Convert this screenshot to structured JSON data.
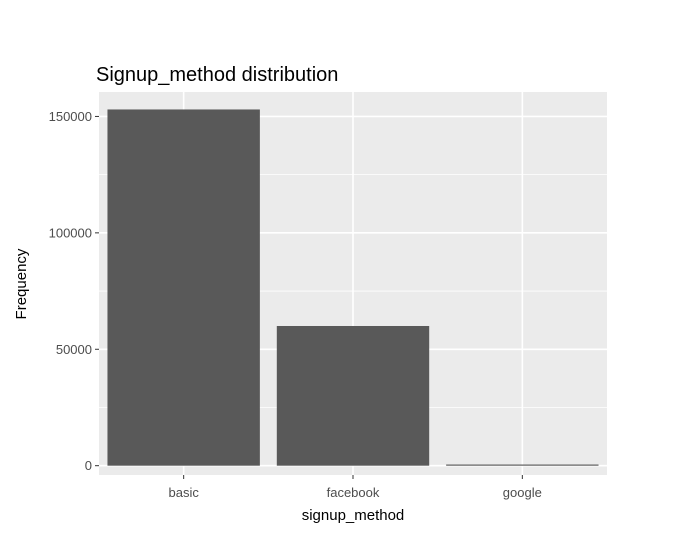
{
  "chart_data": {
    "type": "bar",
    "title": "Signup_method distribution",
    "xlabel": "signup_method",
    "ylabel": "Frequency",
    "categories": [
      "basic",
      "facebook",
      "google"
    ],
    "values": [
      153000,
      60000,
      500
    ],
    "ylim": [
      -4000,
      160500
    ],
    "yticks": [
      0,
      50000,
      100000,
      150000
    ],
    "ytick_labels": [
      "0",
      "50000",
      "100000",
      "150000"
    ],
    "grid": true,
    "legend": "none",
    "colors": {
      "bar": "#595959",
      "panel": "#ebebeb",
      "grid_major": "#ffffff",
      "tick": "#333333"
    }
  }
}
